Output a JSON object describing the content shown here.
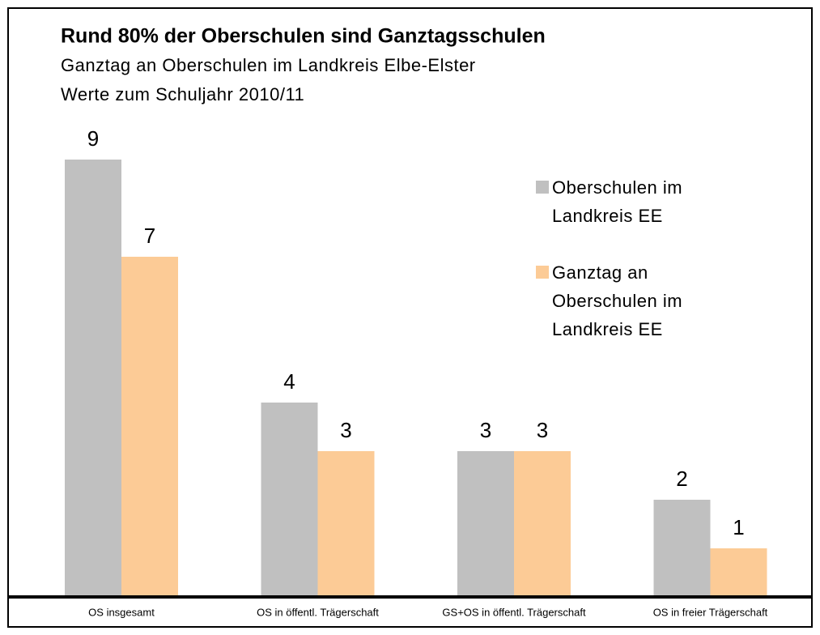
{
  "chart_data": {
    "type": "bar",
    "title": "Rund 80% der Oberschulen sind Ganztagsschulen",
    "subtitle": [
      "Ganztag an Oberschulen im Landkreis Elbe-Elster",
      "Werte zum Schuljahr 2010/11"
    ],
    "categories": [
      "OS insgesamt",
      "OS in öffentl. Trägerschaft",
      "GS+OS in öffentl. Trägerschaft",
      "OS in freier Trägerschaft"
    ],
    "series": [
      {
        "name": "Oberschulen im Landkreis EE",
        "color": "#c0c0c0",
        "values": [
          9,
          4,
          3,
          2
        ]
      },
      {
        "name": "Ganztag an Oberschulen im Landkreis EE",
        "color": "#fccb96",
        "values": [
          7,
          3,
          3,
          1
        ]
      }
    ],
    "legend": "right"
  }
}
